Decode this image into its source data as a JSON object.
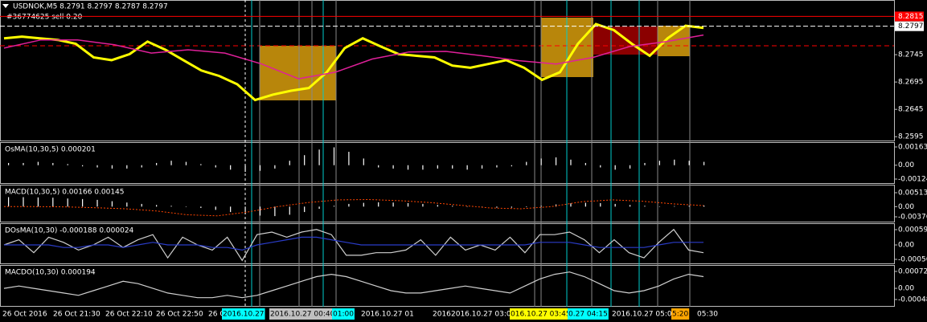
{
  "chart_data": [
    {
      "type": "line",
      "title": "USDNOK,M5  8.2791 8.2797 8.2787 8.2797",
      "subtitle": "#36774625 sell 0.20",
      "series": [
        {
          "color": "#ffff00",
          "values": [
            8.2775,
            8.2778,
            8.2775,
            8.2772,
            8.2765,
            8.274,
            8.2735,
            8.2746,
            8.2769,
            8.2754,
            8.2735,
            8.2716,
            8.2706,
            8.2691,
            8.2662,
            8.2672,
            8.2679,
            8.2684,
            8.2713,
            8.2757,
            8.2775,
            8.276,
            8.2746,
            8.2743,
            8.274,
            8.2725,
            8.2721,
            8.2728,
            8.2735,
            8.2721,
            8.2699,
            8.2713,
            8.2765,
            8.2801,
            8.279,
            8.2765,
            8.2743,
            8.2775,
            8.2798,
            8.2794
          ]
        },
        {
          "color": "#e0209a",
          "values": [
            8.2757,
            8.2772,
            8.2772,
            8.2763,
            8.2748,
            8.2754,
            8.2748,
            8.2728,
            8.2701,
            8.2713,
            8.2737,
            8.275,
            8.2751,
            8.2743,
            8.2734,
            8.2728,
            8.274,
            8.276,
            8.2769,
            8.2781
          ]
        }
      ],
      "ylim": [
        8.2588,
        8.2845
      ],
      "yticks": [
        8.2745,
        8.2695,
        8.2645,
        8.2595
      ],
      "price_lines": [
        {
          "value": 8.2815,
          "color": "#ff0000"
        },
        {
          "value": 8.2797,
          "color": "#ffffff"
        }
      ]
    },
    {
      "type": "bar",
      "title": "OsMA(10,30,5) 0.000201",
      "color": "#ffffff",
      "values": [
        0.0002,
        0.0002,
        0.0003,
        0.0002,
        0.0001,
        -0.0001,
        -0.0002,
        -0.0003,
        -0.0003,
        -0.0002,
        0.0002,
        0.0004,
        0.0003,
        0.0001,
        -0.0002,
        -0.0004,
        -0.0006,
        -0.0005,
        -0.0003,
        0.0004,
        0.0009,
        0.0014,
        0.0016,
        0.0012,
        0.0006,
        -0.0002,
        -0.0003,
        -0.0004,
        -0.0004,
        -0.0003,
        -0.0003,
        -0.0004,
        -0.0003,
        -0.0002,
        -0.0001,
        0.0003,
        0.0006,
        0.0007,
        0.0005,
        0.0002,
        -0.0002,
        -0.0004,
        -0.0003,
        0.0002,
        0.0004,
        0.0005,
        0.0004,
        0.0003
      ],
      "ylim": [
        -0.00124,
        0.001635
      ],
      "yticks": [
        {
          "value": 0.001635,
          "label": "0.00163"
        },
        {
          "value": 0,
          "label": "0.00"
        },
        {
          "value": -0.00124,
          "label": "-0.00124"
        }
      ]
    },
    {
      "type": "bar",
      "title": "MACD(10,30,5) 0.00166 0.00145",
      "color": "#ffffff",
      "values": [
        0.0035,
        0.0035,
        0.0034,
        0.0033,
        0.003,
        0.0028,
        0.0025,
        0.002,
        0.0015,
        0.001,
        0.0006,
        0.0003,
        0,
        -0.0005,
        -0.0012,
        -0.002,
        -0.0028,
        -0.0033,
        -0.0035,
        -0.003,
        -0.002,
        -0.0008,
        0.0003,
        0.001,
        0.0014,
        0.0016,
        0.0015,
        0.0013,
        0.001,
        0.0006,
        0.0003,
        0.0001,
        -0.0002,
        -0.0004,
        -0.0004,
        -0.0002,
        0.0003,
        0.0008,
        0.0012,
        0.0014,
        0.0013,
        0.001,
        0.0006,
        0.0003,
        0.0001,
        0.0002,
        0.0003,
        0.0004
      ],
      "signal": {
        "color": "#ff4500",
        "values": [
          0,
          0,
          -0.0001,
          -0.0004,
          -0.0008,
          -0.0016,
          -0.003,
          -0.0034,
          -0.002,
          0,
          0.0015,
          0.0025,
          0.0026,
          0.0022,
          0.0015,
          0.0005,
          -0.0005,
          -0.0008,
          0,
          0.0018,
          0.0025,
          0.002,
          0.001,
          0.0004
        ]
      },
      "ylim": [
        -0.00376,
        0.00513
      ],
      "yticks": [
        {
          "value": 0.00513,
          "label": "0.00513"
        },
        {
          "value": 0,
          "label": "0.00"
        },
        {
          "value": -0.00376,
          "label": "-0.00376"
        }
      ]
    },
    {
      "type": "line",
      "title": "DOsMA(10,30) -0.000188 0.000024",
      "series": [
        {
          "color": "#d0d0d0",
          "values": [
            0,
            0.0002,
            -0.0003,
            0.0003,
            0.0001,
            -0.0002,
            0,
            0.0003,
            -0.0001,
            0.0002,
            0.0004,
            -0.0005,
            0.0003,
            0,
            -0.0002,
            0.0003,
            -0.0006,
            0.0004,
            0.0005,
            0.0003,
            0.0005,
            0.0006,
            0.0004,
            -0.0004,
            -0.0004,
            -0.0003,
            -0.0003,
            -0.0002,
            0.0002,
            -0.0004,
            0.0003,
            -0.0002,
            0,
            -0.0002,
            0.0003,
            -0.0003,
            0.0004,
            0.0004,
            0.0005,
            0.0002,
            -0.0003,
            0.0002,
            -0.0003,
            -0.0005,
            0.0001,
            0.0006,
            -0.0002,
            -0.0003
          ]
        },
        {
          "color": "#2a3cc8",
          "values": [
            0,
            0,
            0,
            0,
            -0.0001,
            -0.0001,
            0,
            0,
            -0.0001,
            0,
            0.0001,
            0,
            0,
            0,
            -0.0001,
            -0.0001,
            -0.0002,
            0,
            0.0001,
            0.0002,
            0.0003,
            0.0003,
            0.0002,
            0.0001,
            0,
            0,
            0,
            0,
            0,
            0,
            0,
            0,
            0,
            0,
            0,
            0,
            0.0001,
            0.0001,
            0.0001,
            0,
            -0.0001,
            -0.0001,
            -0.0001,
            -0.0001,
            0,
            0.0001,
            0.0001,
            0.0001
          ]
        }
      ],
      "ylim": [
        -0.00056,
        0.000593
      ],
      "yticks": [
        {
          "value": 0.000593,
          "label": "0.000593"
        },
        {
          "value": 0,
          "label": "0.00"
        },
        {
          "value": -0.00056,
          "label": "-0.00056"
        }
      ]
    },
    {
      "type": "line",
      "title": "MACDO(10,30) 0.000194",
      "series": [
        {
          "color": "#d0d0d0",
          "values": [
            0,
            0.0001,
            0,
            -0.0001,
            -0.0002,
            -0.0003,
            -0.0001,
            0.0001,
            0.0003,
            0.0002,
            0,
            -0.0002,
            -0.0003,
            -0.0004,
            -0.0004,
            -0.0003,
            -0.0004,
            -0.0003,
            -0.0001,
            0.0001,
            0.0003,
            0.0005,
            0.0006,
            0.0005,
            0.0003,
            0.0001,
            -0.0001,
            -0.0002,
            -0.0002,
            -0.0001,
            0,
            0.0001,
            0,
            -0.0001,
            -0.0002,
            0.0001,
            0.0004,
            0.0006,
            0.0007,
            0.0005,
            0.0002,
            -0.0001,
            -0.0002,
            -0.0001,
            0.0001,
            0.0004,
            0.0006,
            0.0005
          ]
        }
      ],
      "ylim": [
        -0.00048,
        0.000725
      ],
      "yticks": [
        {
          "value": 0.000725,
          "label": "0.000725"
        },
        {
          "value": 0,
          "label": "0.00"
        },
        {
          "value": -0.00048,
          "label": "-0.00048"
        }
      ]
    }
  ],
  "time_labels": [
    {
      "text": "26 Oct 2016"
    },
    {
      "text": "26 Oct 21:30"
    },
    {
      "text": "26 Oct 22:10"
    },
    {
      "text": "26 Oct 22:50"
    },
    {
      "text": "26 O"
    },
    {
      "text": "2016.10.27",
      "bg": "#00ffff"
    },
    {
      "text": "2016.10.27 00:40",
      "bg": "#c0c0c0"
    },
    {
      "text": "01:00",
      "bg": "#00ffff"
    },
    {
      "text": "2016.10.27 01"
    },
    {
      "text": "2016"
    },
    {
      "text": "2016.10.27 03:00"
    },
    {
      "text": "016.10.27 03:45",
      "bg": "#ffff00"
    },
    {
      "text": "0.27 04:15",
      "bg": "#00ffff"
    },
    {
      "text": "2016.10.27 05:05"
    },
    {
      "text": "5:20",
      "bg": "#ffa500"
    },
    {
      "text": "05:30"
    }
  ]
}
